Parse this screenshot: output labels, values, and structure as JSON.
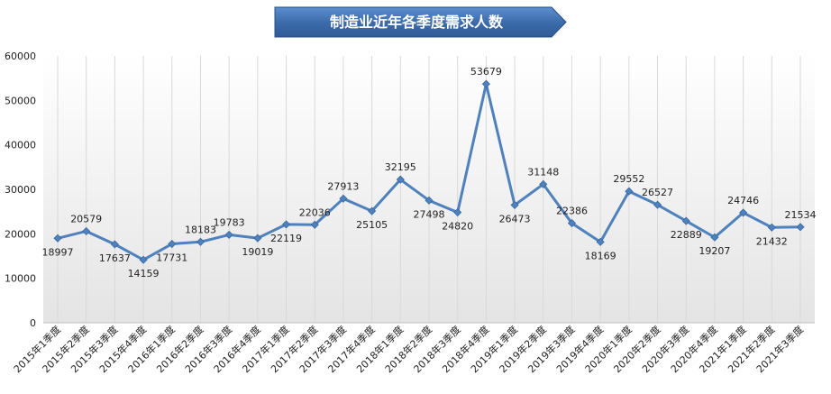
{
  "chart_data": {
    "type": "line",
    "title": "制造业近年各季度需求人数",
    "xlabel": "",
    "ylabel": "",
    "ylim": [
      0,
      60000
    ],
    "yticks": [
      0,
      10000,
      20000,
      30000,
      40000,
      50000,
      60000
    ],
    "grid": "vertical",
    "categories": [
      "2015年1季度",
      "2015年2季度",
      "2015年3季度",
      "2015年4季度",
      "2016年1季度",
      "2016年2季度",
      "2016年3季度",
      "2016年4季度",
      "2017年1季度",
      "2017年2季度",
      "2017年3季度",
      "2017年4季度",
      "2018年1季度",
      "2018年2季度",
      "2018年3季度",
      "2018年4季度",
      "2019年1季度",
      "2019年2季度",
      "2019年3季度",
      "2019年4季度",
      "2020年1季度",
      "2020年2季度",
      "2020年3季度",
      "2020年4季度",
      "2021年1季度",
      "2021年2季度",
      "2021年3季度"
    ],
    "values": [
      18997,
      20579,
      17637,
      14159,
      17731,
      18183,
      19783,
      19019,
      22119,
      22036,
      27913,
      25105,
      32195,
      27498,
      24820,
      53679,
      26473,
      31148,
      22386,
      18169,
      29552,
      26527,
      22889,
      19207,
      24746,
      21432,
      21534
    ],
    "label_positions": [
      "below",
      "above",
      "below",
      "below",
      "below",
      "above",
      "above",
      "below",
      "below",
      "above",
      "above",
      "below",
      "above",
      "below",
      "below",
      "above",
      "below",
      "above",
      "above",
      "below",
      "above",
      "above",
      "below",
      "below",
      "above",
      "below",
      "above"
    ],
    "colors": {
      "line": "#4f81bd",
      "marker": "#4f81bd",
      "title_fill": "#3f6fae",
      "grid": "#d9d9d9"
    }
  }
}
